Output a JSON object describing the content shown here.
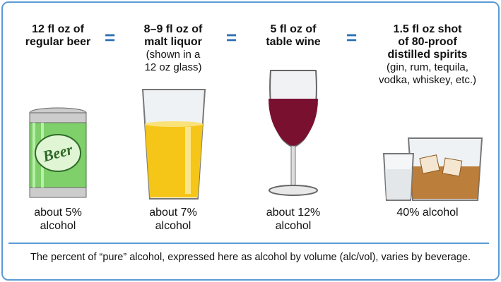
{
  "equals": [
    "=",
    "=",
    "="
  ],
  "can_text": "Beer",
  "drinks": [
    {
      "title": [
        "12 fl oz of",
        "regular beer"
      ],
      "label": [
        "about 5%",
        "alcohol"
      ]
    },
    {
      "title": [
        "8–9 fl oz of",
        "malt liquor"
      ],
      "note": [
        "(shown in a",
        "12 oz glass)"
      ],
      "label": [
        "about 7%",
        "alcohol"
      ]
    },
    {
      "title": [
        "5 fl oz of",
        "table wine"
      ],
      "label": [
        "about 12%",
        "alcohol"
      ]
    },
    {
      "title": [
        "1.5 fl oz shot",
        "of 80-proof",
        "distilled spirits"
      ],
      "note": [
        "(gin, rum, tequila,",
        "vodka, whiskey, etc.)"
      ],
      "label": [
        "40% alcohol"
      ]
    }
  ],
  "footer": "The percent of “pure” alcohol, expressed here as alcohol by volume (alc/vol), varies by beverage."
}
